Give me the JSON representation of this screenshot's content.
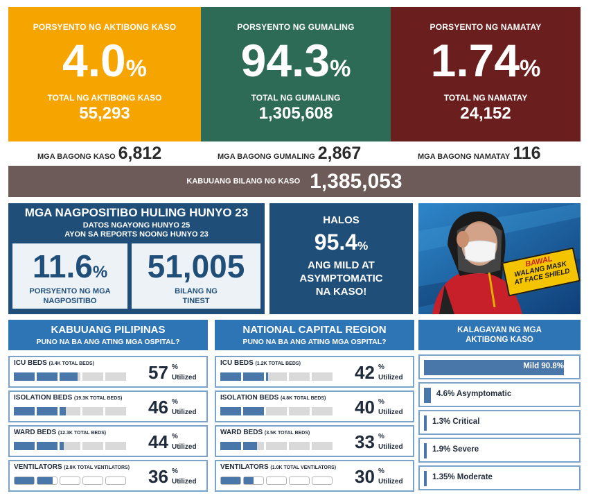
{
  "top_stats": {
    "active": {
      "label": "PORSYENTO NG AKTIBONG KASO",
      "value": "4.0",
      "unit": "%",
      "total_label": "TOTAL NG AKTIBONG KASO",
      "total_value": "55,293",
      "color": "#f6a400"
    },
    "recovered": {
      "label": "PORSYENTO NG GUMALING",
      "value": "94.3",
      "unit": "%",
      "total_label": "TOTAL NG GUMALING",
      "total_value": "1,305,608",
      "color": "#2e6b57"
    },
    "deaths": {
      "label": "PORSYENTO NG NAMATAY",
      "value": "1.74",
      "unit": "%",
      "total_label": "TOTAL NG NAMATAY",
      "total_value": "24,152",
      "color": "#6b1e1e"
    }
  },
  "new_counts": {
    "new_cases_label": "MGA BAGONG KASO",
    "new_cases_value": "6,812",
    "new_recovered_label": "MGA BAGONG GUMALING",
    "new_recovered_value": "2,867",
    "new_deaths_label": "MGA BAGONG NAMATAY",
    "new_deaths_value": "116"
  },
  "total_cases": {
    "label": "KABUUANG BILANG NG KASO",
    "value": "1,385,053"
  },
  "positivity": {
    "title": "MGA NAGPOSITIBO HULING HUNYO 23",
    "subtitle1": "DATOS NGAYONG HUNYO 25",
    "subtitle2": "AYON SA REPORTS NOONG HUNYO 23",
    "rate_value": "11.6",
    "rate_unit": "%",
    "rate_caption1": "PORSYENTO NG MGA",
    "rate_caption2": "NAGPOSITIBO",
    "tested_value": "51,005",
    "tested_caption1": "BILANG NG",
    "tested_caption2": "TINEST"
  },
  "mild": {
    "halos": "HALOS",
    "value": "95.4",
    "unit": "%",
    "caption1": "ANG MILD AT",
    "caption2": "ASYMPTOMATIC",
    "caption3": "NA KASO!"
  },
  "banner": {
    "line1": "BAWAL",
    "line2": "WALANG MASK",
    "line3": "AT FACE SHIELD"
  },
  "hospitals": [
    {
      "title": "KABUUANG PILIPINAS",
      "subtitle": "PUNO NA BA ANG ATING MGA OSPITAL?",
      "rows": [
        {
          "name": "ICU BEDS",
          "total": "(3.4K TOTAL BEDS)",
          "percent": "57",
          "percent_value": 57,
          "unit": "%",
          "caption": "Utilized",
          "kind": "bed"
        },
        {
          "name": "ISOLATION BEDS",
          "total": "(19.3K TOTAL BEDS)",
          "percent": "46",
          "percent_value": 46,
          "unit": "%",
          "caption": "Utilized",
          "kind": "bed"
        },
        {
          "name": "WARD BEDS",
          "total": "(12.3K TOTAL BEDS)",
          "percent": "44",
          "percent_value": 44,
          "unit": "%",
          "caption": "Utilized",
          "kind": "bed"
        },
        {
          "name": "VENTILATORS",
          "total": "(2.8K TOTAL VENTILATORS)",
          "percent": "36",
          "percent_value": 36,
          "unit": "%",
          "caption": "Utilized",
          "kind": "vent"
        }
      ]
    },
    {
      "title": "NATIONAL CAPITAL REGION",
      "subtitle": "PUNO NA BA ANG ATING MGA OSPITAL?",
      "rows": [
        {
          "name": "ICU BEDS",
          "total": "(1.2K TOTAL BEDS)",
          "percent": "42",
          "percent_value": 42,
          "unit": "%",
          "caption": "Utilized",
          "kind": "bed"
        },
        {
          "name": "ISOLATION BEDS",
          "total": "(4.8K TOTAL BEDS)",
          "percent": "40",
          "percent_value": 40,
          "unit": "%",
          "caption": "Utilized",
          "kind": "bed"
        },
        {
          "name": "WARD BEDS",
          "total": "(3.5K TOTAL BEDS)",
          "percent": "33",
          "percent_value": 33,
          "unit": "%",
          "caption": "Utilized",
          "kind": "bed"
        },
        {
          "name": "VENTILATORS",
          "total": "(1.0K TOTAL VENTILATORS)",
          "percent": "30",
          "percent_value": 30,
          "unit": "%",
          "caption": "Utilized",
          "kind": "vent"
        }
      ]
    }
  ],
  "status": {
    "title1": "KALAGAYAN NG MGA",
    "title2": "AKTIBONG KASO",
    "items": [
      {
        "label": "Mild 90.8%",
        "percent": 90.8
      },
      {
        "label": "4.6% Asymptomatic",
        "percent": 4.6
      },
      {
        "label": "1.3% Critical",
        "percent": 1.3
      },
      {
        "label": "1.9% Severe",
        "percent": 1.9
      },
      {
        "label": "1.35% Moderate",
        "percent": 1.35
      }
    ]
  },
  "colors": {
    "navy": "#1f4e79",
    "header_blue": "#2e75b6",
    "fill_blue": "#4a77aa",
    "total_bar": "#6d5b59"
  }
}
